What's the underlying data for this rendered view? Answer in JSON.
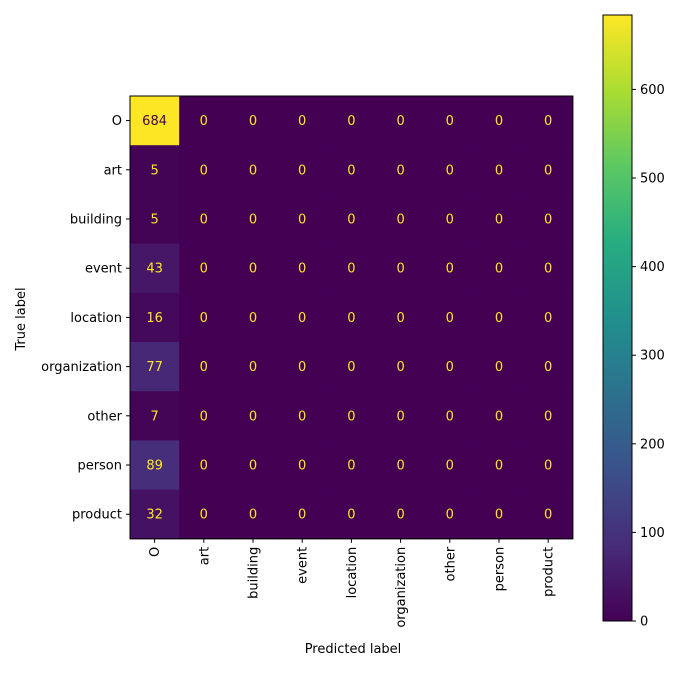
{
  "chart_data": {
    "type": "heatmap",
    "title": "",
    "xlabel": "Predicted label",
    "ylabel": "True label",
    "row_labels": [
      "O",
      "art",
      "building",
      "event",
      "location",
      "organization",
      "other",
      "person",
      "product"
    ],
    "col_labels": [
      "O",
      "art",
      "building",
      "event",
      "location",
      "organization",
      "other",
      "person",
      "product"
    ],
    "values": [
      [
        684,
        0,
        0,
        0,
        0,
        0,
        0,
        0,
        0
      ],
      [
        5,
        0,
        0,
        0,
        0,
        0,
        0,
        0,
        0
      ],
      [
        5,
        0,
        0,
        0,
        0,
        0,
        0,
        0,
        0
      ],
      [
        43,
        0,
        0,
        0,
        0,
        0,
        0,
        0,
        0
      ],
      [
        16,
        0,
        0,
        0,
        0,
        0,
        0,
        0,
        0
      ],
      [
        77,
        0,
        0,
        0,
        0,
        0,
        0,
        0,
        0
      ],
      [
        7,
        0,
        0,
        0,
        0,
        0,
        0,
        0,
        0
      ],
      [
        89,
        0,
        0,
        0,
        0,
        0,
        0,
        0,
        0
      ],
      [
        32,
        0,
        0,
        0,
        0,
        0,
        0,
        0,
        0
      ]
    ],
    "colormap": "viridis",
    "colorbar": {
      "range": [
        0,
        684
      ],
      "ticks": [
        0,
        100,
        200,
        300,
        400,
        500,
        600
      ],
      "tick_labels": [
        "0",
        "100",
        "200",
        "300",
        "400",
        "500",
        "600"
      ]
    },
    "colors": {
      "text_on_dark": "#fde725",
      "text_on_light": "#440154"
    }
  }
}
